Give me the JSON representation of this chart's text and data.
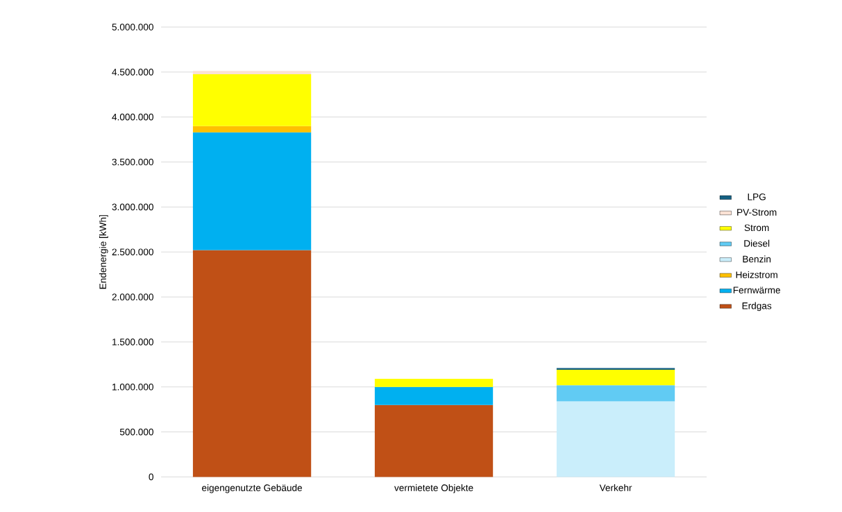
{
  "chart_data": {
    "type": "bar",
    "stacked": true,
    "ylabel": "Endenergie [kWh]",
    "categories": [
      "eigengenutzte Gebäude",
      "vermietete Objekte",
      "Verkehr"
    ],
    "series": [
      {
        "name": "Erdgas",
        "color": "#c05016",
        "values": [
          2520000,
          800000,
          null
        ]
      },
      {
        "name": "Fernwärme",
        "color": "#00b0f0",
        "values": [
          1310000,
          200000,
          null
        ]
      },
      {
        "name": "Heizstrom",
        "color": "#ffc000",
        "values": [
          70000,
          null,
          null
        ]
      },
      {
        "name": "Benzin",
        "color": "#caeefb",
        "values": [
          null,
          null,
          840000
        ]
      },
      {
        "name": "Diesel",
        "color": "#61cbf3",
        "values": [
          null,
          null,
          180000
        ]
      },
      {
        "name": "Strom",
        "color": "#ffff00",
        "values": [
          575000,
          90000,
          170000
        ]
      },
      {
        "name": "PV-Strom",
        "color": "#fbe2d5",
        "values": [
          37000,
          null,
          null
        ]
      },
      {
        "name": "LPG",
        "color": "#156082",
        "values": [
          null,
          null,
          20000
        ]
      }
    ],
    "ylim": [
      0,
      5000000
    ],
    "yticks": [
      0,
      {
        "value": 500000,
        "label": "500.000"
      },
      {
        "value": 1000000,
        "label": "1.000.000"
      },
      {
        "value": 1500000,
        "label": "1.500.000"
      },
      {
        "value": 2000000,
        "label": "2.000.000"
      },
      {
        "value": 2500000,
        "label": "2.500.000"
      },
      {
        "value": 3000000,
        "label": "3.000.000"
      },
      {
        "value": 3500000,
        "label": "3.500.000"
      },
      {
        "value": 4000000,
        "label": "4.000.000"
      },
      {
        "value": 4500000,
        "label": "4.500.000"
      },
      {
        "value": 5000000,
        "label": "5.000.000"
      }
    ],
    "grid": "y",
    "legend": "right"
  }
}
